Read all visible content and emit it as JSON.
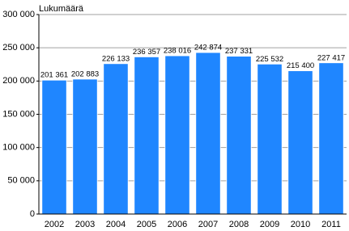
{
  "chart_data": {
    "type": "bar",
    "title": "Lukumäärä",
    "categories": [
      "2002",
      "2003",
      "2004",
      "2005",
      "2006",
      "2007",
      "2008",
      "2009",
      "2010",
      "2011"
    ],
    "values": [
      201361,
      202883,
      226133,
      236357,
      238016,
      242874,
      237331,
      225532,
      215400,
      227417
    ],
    "value_labels": [
      "201 361",
      "202 883",
      "226 133",
      "236 357",
      "238 016",
      "242 874",
      "237 331",
      "225 532",
      "215 400",
      "227 417"
    ],
    "color": "#1f86ff",
    "ylim": [
      0,
      300000
    ],
    "yticks": [
      0,
      {
        "value": 50000,
        "label": "50 000"
      },
      {
        "value": 100000,
        "label": "100 000"
      },
      {
        "value": 150000,
        "label": "150 000"
      },
      {
        "value": 200000,
        "label": "200 000"
      },
      {
        "value": 250000,
        "label": "250 000"
      },
      {
        "value": 300000,
        "label": "300 000"
      }
    ],
    "grid": true
  }
}
